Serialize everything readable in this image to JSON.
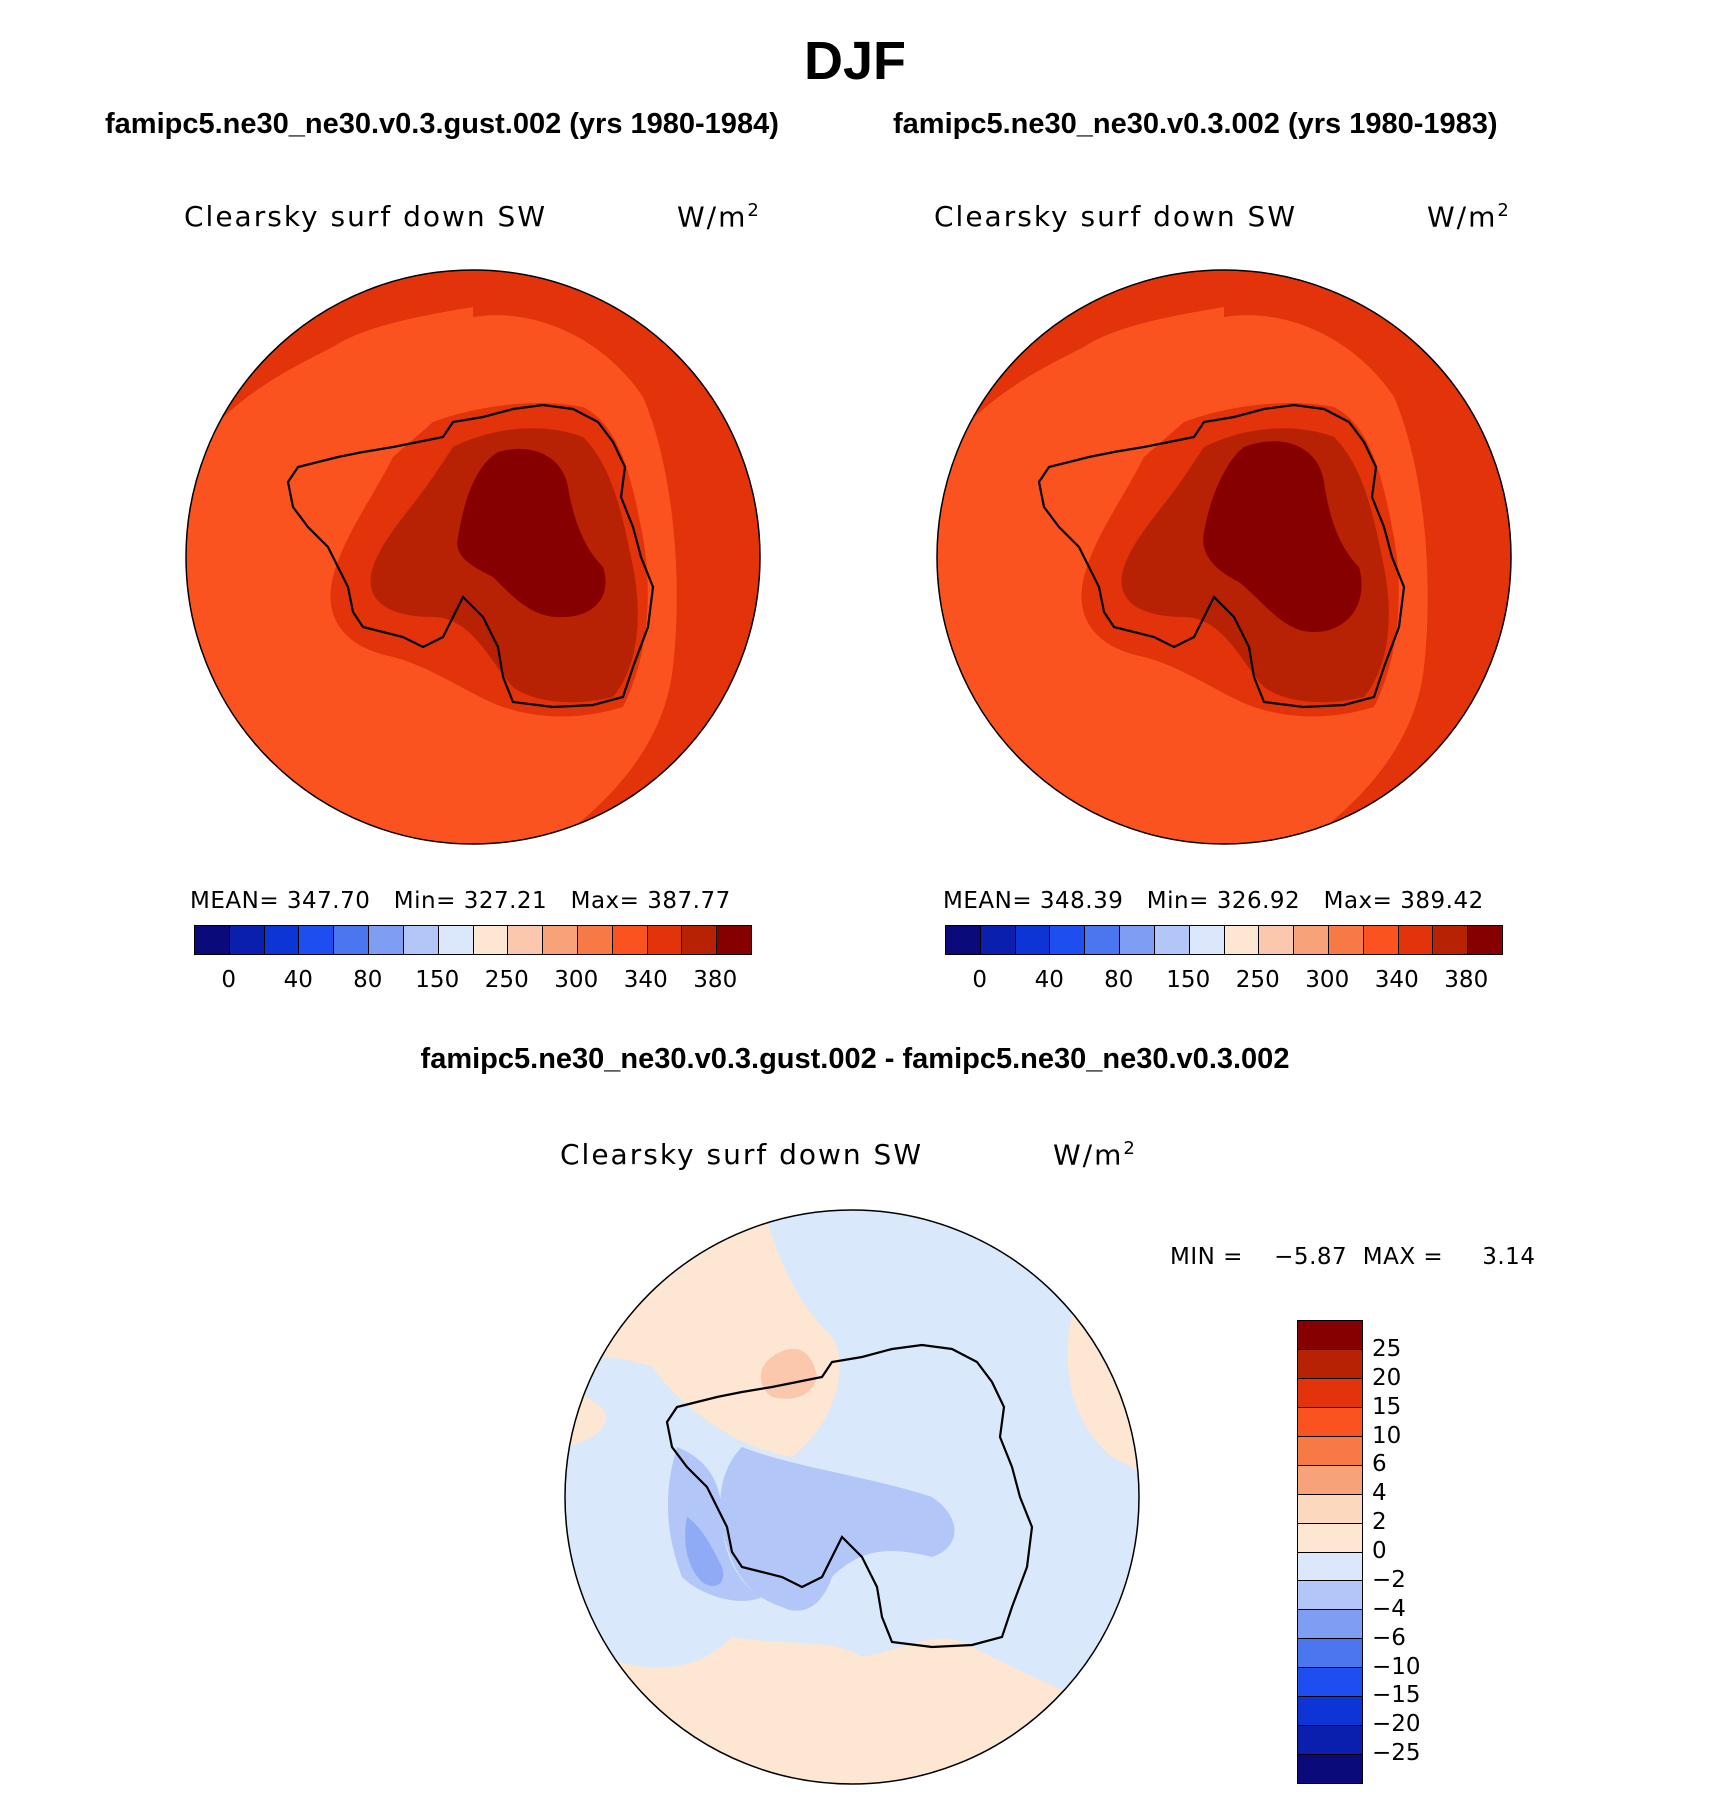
{
  "page": {
    "title": "DJF",
    "diff_title": "famipc5.ne30_ne30.v0.3.gust.002 - famipc5.ne30_ne30.v0.3.002"
  },
  "panels": [
    {
      "case_title": "famipc5.ne30_ne30.v0.3.gust.002 (yrs 1980-1984)",
      "variable": "Clearsky surf down SW",
      "units": "W/m",
      "units_sup": "2",
      "stats": "MEAN= 347.70   Min= 327.21   Max= 387.77",
      "mean": 347.7,
      "min": 327.21,
      "max": 387.77
    },
    {
      "case_title": "famipc5.ne30_ne30.v0.3.002 (yrs 1980-1983)",
      "variable": "Clearsky surf down SW",
      "units": "W/m",
      "units_sup": "2",
      "stats": "MEAN= 348.39   Min= 326.92   Max= 389.42",
      "mean": 348.39,
      "min": 326.92,
      "max": 389.42
    }
  ],
  "diff_panel": {
    "variable": "Clearsky surf down SW",
    "units": "W/m",
    "units_sup": "2",
    "stats": "MIN =    −5.87  MAX =     3.14",
    "min": -5.87,
    "max": 3.14
  },
  "colorbar_abs": {
    "colors": [
      "#0a0a7a",
      "#0a1fae",
      "#0d35d6",
      "#1f4ef0",
      "#4a77f0",
      "#7d9ef3",
      "#b2c6f7",
      "#dbe8fb",
      "#fde6d2",
      "#fbc8ad",
      "#f8a27a",
      "#f77a46",
      "#fb531f",
      "#e2330a",
      "#b82204",
      "#870000"
    ],
    "tick_labels": [
      "0",
      "40",
      "80",
      "150",
      "250",
      "300",
      "340",
      "380"
    ]
  },
  "colorbar_diff": {
    "colors": [
      "#870000",
      "#b82204",
      "#e2330a",
      "#fb531f",
      "#f77a46",
      "#f8a27a",
      "#fbd8be",
      "#fde6d2",
      "#dbe8fb",
      "#b2c6f7",
      "#7d9ef3",
      "#4a77f0",
      "#1f4ef0",
      "#0d35d6",
      "#0a1fae",
      "#0a0a7a"
    ],
    "tick_labels": [
      "25",
      "20",
      "15",
      "10",
      "6",
      "4",
      "2",
      "0",
      "−2",
      "−4",
      "−6",
      "−10",
      "−15",
      "−20",
      "−25"
    ]
  },
  "map_colors": {
    "c380": "#870000",
    "c340": "#b82204",
    "c320": "#e2330a",
    "c300": "#fb531f",
    "c280": "#f77a46",
    "d_pos2": "#fde6d2",
    "d_pos4": "#fbc8ad",
    "d_zero": "#d9e8fb",
    "d_neg2": "#b2c6f7",
    "d_neg4": "#8fabf5"
  }
}
